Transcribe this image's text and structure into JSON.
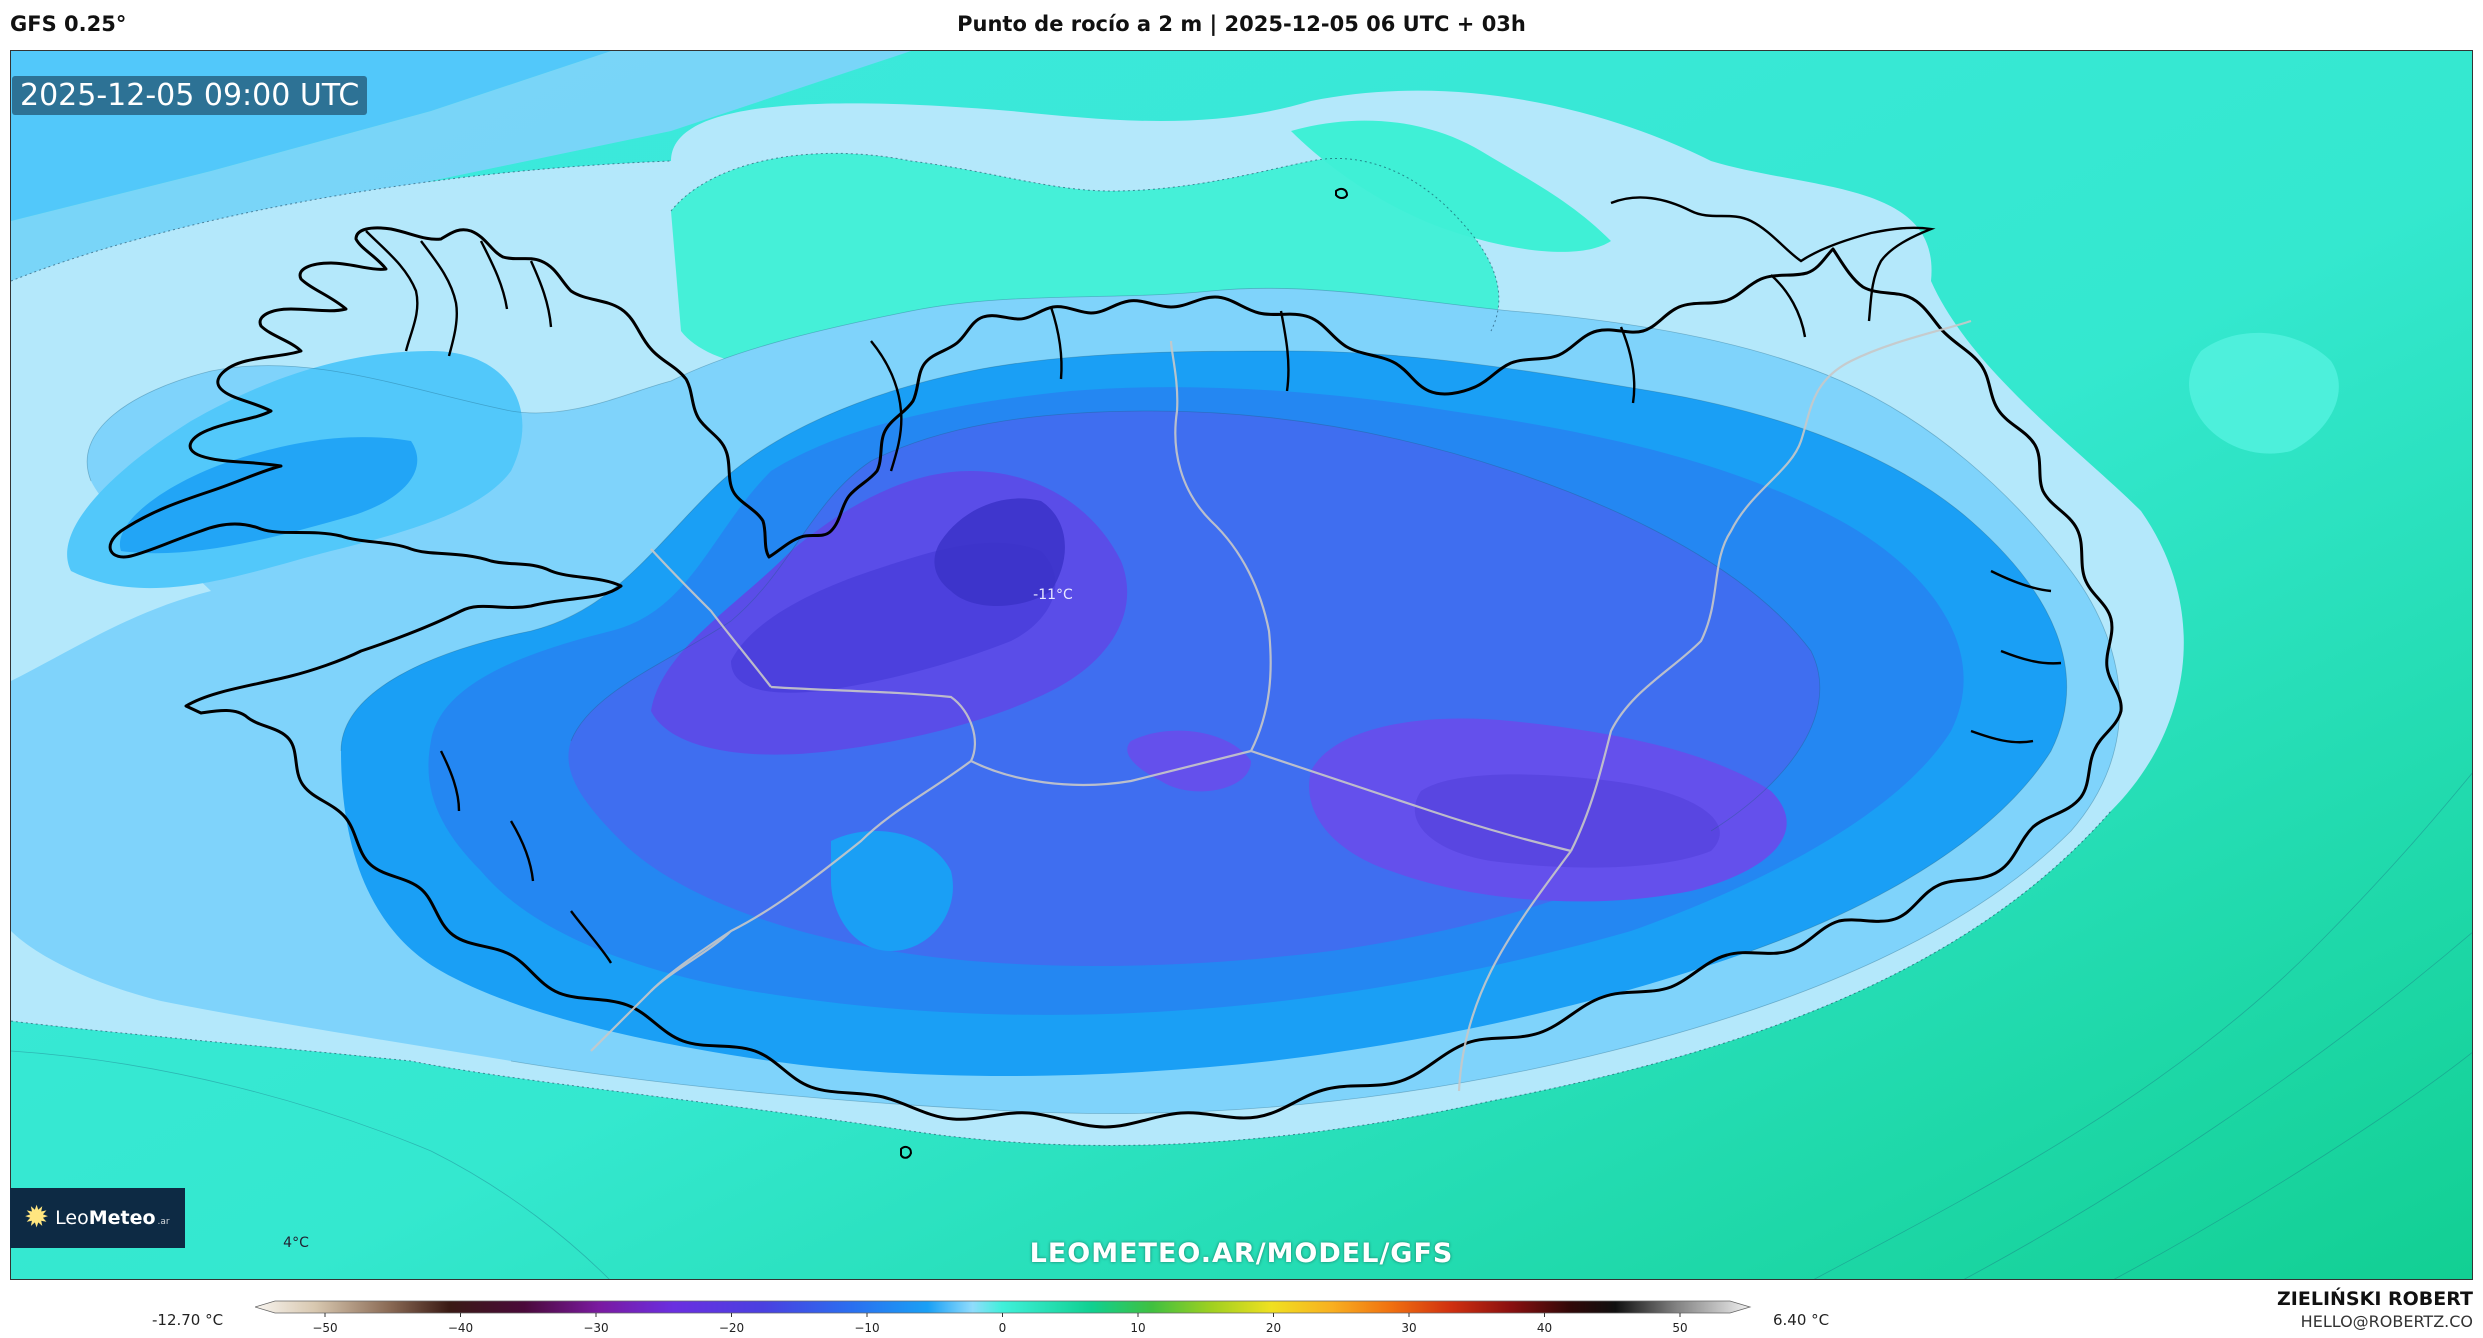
{
  "header": {
    "model": "GFS 0.25°",
    "title": "Punto de rocío a 2 m | 2025-12-05 06 UTC + 03h"
  },
  "map": {
    "valid_time": "2025-12-05 09:00 UTC",
    "labels": {
      "min_label": "-11°C",
      "corner_label": "4°C"
    },
    "website": "LEOMETEO.AR/MODEL/GFS",
    "logo": {
      "brand_light": "Leo",
      "brand_bold": "Meteo",
      "suffix": ".ar"
    },
    "colors": {
      "cold_core": "#5a4de8",
      "deep_blue": "#3f6ef0",
      "mid_blue": "#1a9ff5",
      "light_blue": "#7fd3fb",
      "pale_blue": "#b4e8fb",
      "turquoise": "#3ff0d6",
      "sea_green": "#22dca8"
    }
  },
  "colorbar": {
    "min_value": "-12.70 °C",
    "max_value": "6.40 °C",
    "ticks": [
      "−50",
      "−40",
      "−30",
      "−20",
      "−10",
      "0",
      "10",
      "20",
      "30",
      "40",
      "50"
    ],
    "unit": "°C"
  },
  "author": {
    "name": "ZIELIŃSKI ROBERT",
    "email": "HELLO@ROBERTZ.CO"
  }
}
